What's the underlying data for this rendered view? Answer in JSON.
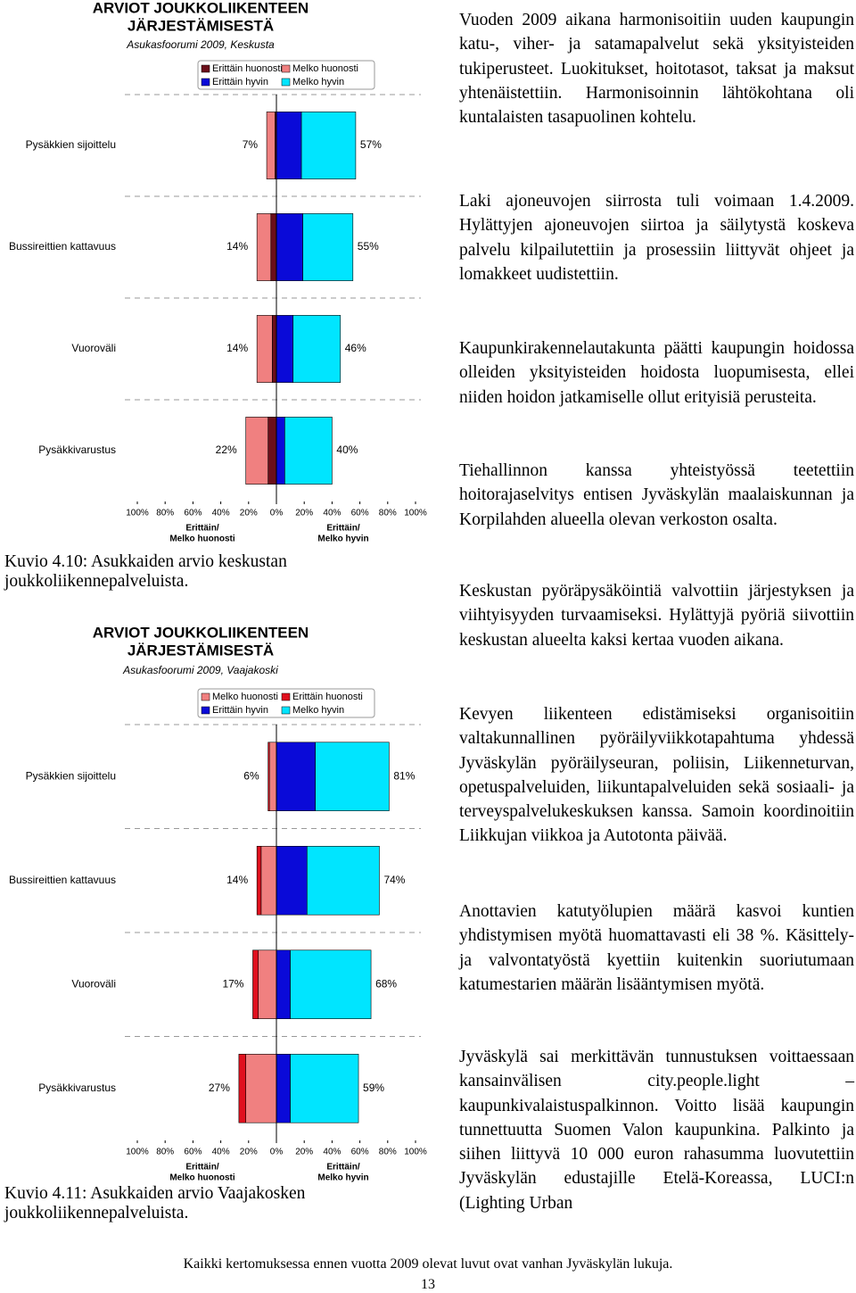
{
  "chart_data": [
    {
      "type": "bar",
      "orientation": "horizontal",
      "stacking": "diverging",
      "title": [
        "ARVIOT JOUKKOLIIKENTEEN",
        "JÄRJESTÄMISESTÄ"
      ],
      "subtitle": "Asukasfoorumi 2009, Keskusta",
      "categories": [
        "Pysäkkien sijoittelu",
        "Bussireittien kattavuus",
        "Vuoroväli",
        "Pysäkkivarustus"
      ],
      "series": [
        {
          "name": "Erittäin huonosti",
          "color": "#6b0f1a",
          "values": [
            -1,
            -4,
            -3,
            -6
          ]
        },
        {
          "name": "Melko huonosti",
          "color": "#f08080",
          "values": [
            -6,
            -10,
            -11,
            -16
          ]
        },
        {
          "name": "Erittäin hyvin",
          "color": "#0a0ad8",
          "values": [
            18,
            19,
            12,
            6
          ]
        },
        {
          "name": "Melko hyvin",
          "color": "#00e5ff",
          "values": [
            39,
            36,
            34,
            34
          ]
        }
      ],
      "left_total_labels": [
        "7%",
        "14%",
        "14%",
        "22%"
      ],
      "right_total_labels": [
        "57%",
        "55%",
        "46%",
        "40%"
      ],
      "xlim": [
        -100,
        100
      ],
      "xticks": [
        {
          "value": -100,
          "label": "100%"
        },
        {
          "value": -80,
          "label": "80%"
        },
        {
          "value": -60,
          "label": "60%"
        },
        {
          "value": -40,
          "label": "40%"
        },
        {
          "value": -20,
          "label": "20%"
        },
        {
          "value": 0,
          "label": "0%"
        },
        {
          "value": 20,
          "label": "20%"
        },
        {
          "value": 40,
          "label": "40%"
        },
        {
          "value": 60,
          "label": "60%"
        },
        {
          "value": 80,
          "label": "80%"
        },
        {
          "value": 100,
          "label": "100%"
        }
      ],
      "xlabel": [
        [
          "Erittäin/",
          "Melko huonosti"
        ],
        [
          "Erittäin/",
          "Melko hyvin"
        ]
      ],
      "grid": true
    },
    {
      "type": "bar",
      "orientation": "horizontal",
      "stacking": "diverging",
      "title": [
        "ARVIOT JOUKKOLIIKENTEEN",
        "JÄRJESTÄMISESTÄ"
      ],
      "subtitle": "Asukasfoorumi 2009, Vaajakoski",
      "categories": [
        "Pysäkkien sijoittelu",
        "Bussireittien kattavuus",
        "Vuoroväli",
        "Pysäkkivarustus"
      ],
      "series": [
        {
          "name": "Melko huonosti",
          "color": "#f08080",
          "values": [
            -5,
            -11,
            -13,
            -22
          ]
        },
        {
          "name": "Erittäin huonosti",
          "color": "#e0101e",
          "values": [
            -1,
            -3,
            -4,
            -5
          ]
        },
        {
          "name": "Erittäin hyvin",
          "color": "#0a0ad8",
          "values": [
            28,
            22,
            10,
            10
          ]
        },
        {
          "name": "Melko hyvin",
          "color": "#00e5ff",
          "values": [
            53,
            52,
            58,
            49
          ]
        }
      ],
      "left_total_labels": [
        "6%",
        "14%",
        "17%",
        "27%"
      ],
      "right_total_labels": [
        "81%",
        "74%",
        "68%",
        "59%"
      ],
      "xlim": [
        -100,
        100
      ],
      "xticks": [
        {
          "value": -100,
          "label": "100%"
        },
        {
          "value": -80,
          "label": "80%"
        },
        {
          "value": -60,
          "label": "60%"
        },
        {
          "value": -40,
          "label": "40%"
        },
        {
          "value": -20,
          "label": "20%"
        },
        {
          "value": 0,
          "label": "0%"
        },
        {
          "value": 20,
          "label": "20%"
        },
        {
          "value": 40,
          "label": "40%"
        },
        {
          "value": 60,
          "label": "60%"
        },
        {
          "value": 80,
          "label": "80%"
        },
        {
          "value": 100,
          "label": "100%"
        }
      ],
      "xlabel": [
        [
          "Erittäin/",
          "Melko huonosti"
        ],
        [
          "Erittäin/",
          "Melko hyvin"
        ]
      ],
      "grid": true
    }
  ],
  "document": {
    "captions": [
      "Kuvio 4.10: Asukkaiden arvio keskustan joukkoliikennepalveluista.",
      "Kuvio 4.11: Asukkaiden arvio Vaajakosken joukkoliikennepalveluista."
    ],
    "paragraphs": [
      "Vuoden 2009 aikana harmonisoitiin uuden kaupungin katu-, viher- ja satamapalvelut sekä yksityisteiden tukiperusteet. Luokitukset, hoitotasot, taksat ja maksut yhtenäistettiin. Harmonisoinnin lähtökohtana oli kuntalaisten tasapuolinen kohtelu.",
      "Laki ajoneuvojen siirrosta tuli voimaan 1.4.2009. Hylättyjen ajoneuvojen siirtoa ja säilytystä koskeva palvelu kilpailutettiin ja prosessiin liittyvät ohjeet ja lomakkeet uudistettiin.",
      "Kaupunkirakennelautakunta päätti kaupungin hoidossa olleiden yksityisteiden hoidosta luopumisesta, ellei niiden hoidon jatkamiselle ollut erityisiä perusteita.",
      "Tiehallinnon kanssa yhteistyössä teetettiin hoitorajaselvitys entisen Jyväskylän maalaiskunnan ja Korpilahden alueella olevan verkoston osalta.",
      "Keskustan pyöräpysäköintiä valvottiin järjestyksen ja viihtyisyyden turvaamiseksi. Hylättyjä pyöriä siivottiin keskustan alueelta kaksi kertaa vuoden aikana.",
      "Kevyen liikenteen edistämiseksi organisoitiin valtakunnallinen pyöräilyviikkotapahtuma yhdessä Jyväskylän pyöräilyseuran, poliisin, Liikenneturvan, opetuspalveluiden, liikuntapalveluiden sekä sosiaali- ja terveyspalvelukeskuksen kanssa. Samoin koordinoitiin Liikkujan viikkoa ja Autotonta päivää.",
      "Anottavien katutyölupien määrä kasvoi kuntien yhdistymisen myötä huomattavasti eli 38 %. Käsittely- ja valvontatyöstä kyettiin kuitenkin suoriutumaan katumestarien määrän lisääntymisen myötä.",
      "Jyväskylä sai merkittävän tunnustuksen voittaessaan kansainvälisen city.people.light –kaupunkivalaistuspalkinnon. Voitto lisää kaupungin tunnettuutta Suomen Valon kaupunkina. Palkinto ja siihen liittyvä 10 000 euron rahasumma luovutettiin Jyväskylän edustajille Etelä-Koreassa, LUCI:n (Lighting Urban"
    ],
    "footer": "Kaikki kertomuksessa ennen vuotta 2009 olevat luvut ovat vanhan Jyväskylän lukuja.",
    "page_number": 13
  }
}
